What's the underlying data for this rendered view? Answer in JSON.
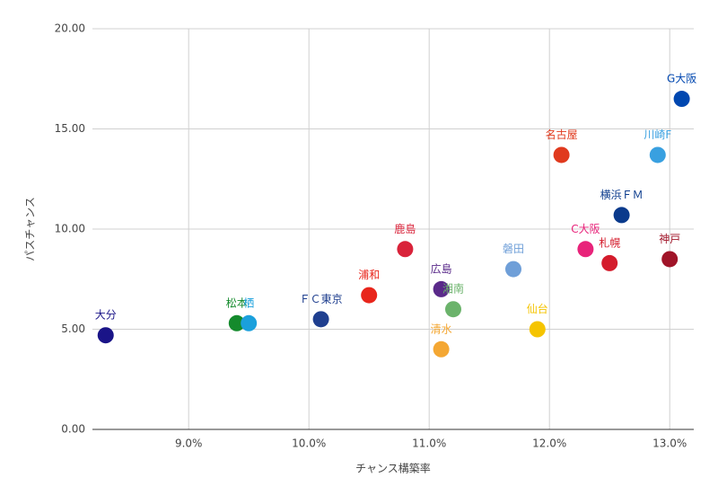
{
  "chart_data": {
    "type": "scatter",
    "x_label": "チャンス構築率",
    "y_label": "パスチャンス",
    "xlim": [
      8.2,
      13.2
    ],
    "ylim": [
      0,
      20
    ],
    "xticks": [
      {
        "value": 9,
        "label": "9.0%"
      },
      {
        "value": 10,
        "label": "10.0%"
      },
      {
        "value": 11,
        "label": "11.0%"
      },
      {
        "value": 12,
        "label": "12.0%"
      },
      {
        "value": 13,
        "label": "13.0%"
      }
    ],
    "yticks": [
      {
        "value": 0,
        "label": "0.00"
      },
      {
        "value": 5,
        "label": "5.00"
      },
      {
        "value": 10,
        "label": "10.00"
      },
      {
        "value": 15,
        "label": "15.00"
      },
      {
        "value": 20,
        "label": "20.00"
      }
    ],
    "grid": true,
    "series": [
      {
        "name": "大分",
        "color": "#1a1488",
        "x": [
          8.31
        ],
        "values": [
          4.7
        ]
      },
      {
        "name": "松本",
        "color": "#148a2c",
        "x": [
          9.4
        ],
        "values": [
          5.3
        ]
      },
      {
        "name": "栖",
        "color": "#1ba0dc",
        "x": [
          9.5
        ],
        "values": [
          5.3
        ]
      },
      {
        "name": "ＦＣ東京",
        "color": "#1f3f8f",
        "x": [
          10.1
        ],
        "values": [
          5.5
        ]
      },
      {
        "name": "浦和",
        "color": "#e8251b",
        "x": [
          10.5
        ],
        "values": [
          6.7
        ]
      },
      {
        "name": "鹿島",
        "color": "#d9233a",
        "x": [
          10.8
        ],
        "values": [
          9.0
        ]
      },
      {
        "name": "広島",
        "color": "#5a2a8a",
        "x": [
          11.1
        ],
        "values": [
          7.0
        ]
      },
      {
        "name": "湘南",
        "color": "#6bb36b",
        "x": [
          11.2
        ],
        "values": [
          6.0
        ]
      },
      {
        "name": "清水",
        "color": "#f4a733",
        "x": [
          11.1
        ],
        "values": [
          4.0
        ]
      },
      {
        "name": "磐田",
        "color": "#6f9fd8",
        "x": [
          11.7
        ],
        "values": [
          8.0
        ]
      },
      {
        "name": "仙台",
        "color": "#f5c400",
        "x": [
          11.9
        ],
        "values": [
          5.0
        ]
      },
      {
        "name": "名古屋",
        "color": "#e03a1e",
        "x": [
          12.1
        ],
        "values": [
          13.7
        ]
      },
      {
        "name": "C大阪",
        "color": "#e8237a",
        "x": [
          12.3
        ],
        "values": [
          9.0
        ]
      },
      {
        "name": "札幌",
        "color": "#d41c2c",
        "x": [
          12.5
        ],
        "values": [
          8.3
        ]
      },
      {
        "name": "横浜ＦＭ",
        "color": "#0a3a8c",
        "x": [
          12.6
        ],
        "values": [
          10.7
        ]
      },
      {
        "name": "神戸",
        "color": "#a01428",
        "x": [
          13.0
        ],
        "values": [
          8.5
        ]
      },
      {
        "name": "川崎F",
        "color": "#39a0e0",
        "x": [
          12.9
        ],
        "values": [
          13.7
        ]
      },
      {
        "name": "G大阪",
        "color": "#0047b0",
        "x": [
          13.1
        ],
        "values": [
          16.5
        ]
      }
    ]
  }
}
